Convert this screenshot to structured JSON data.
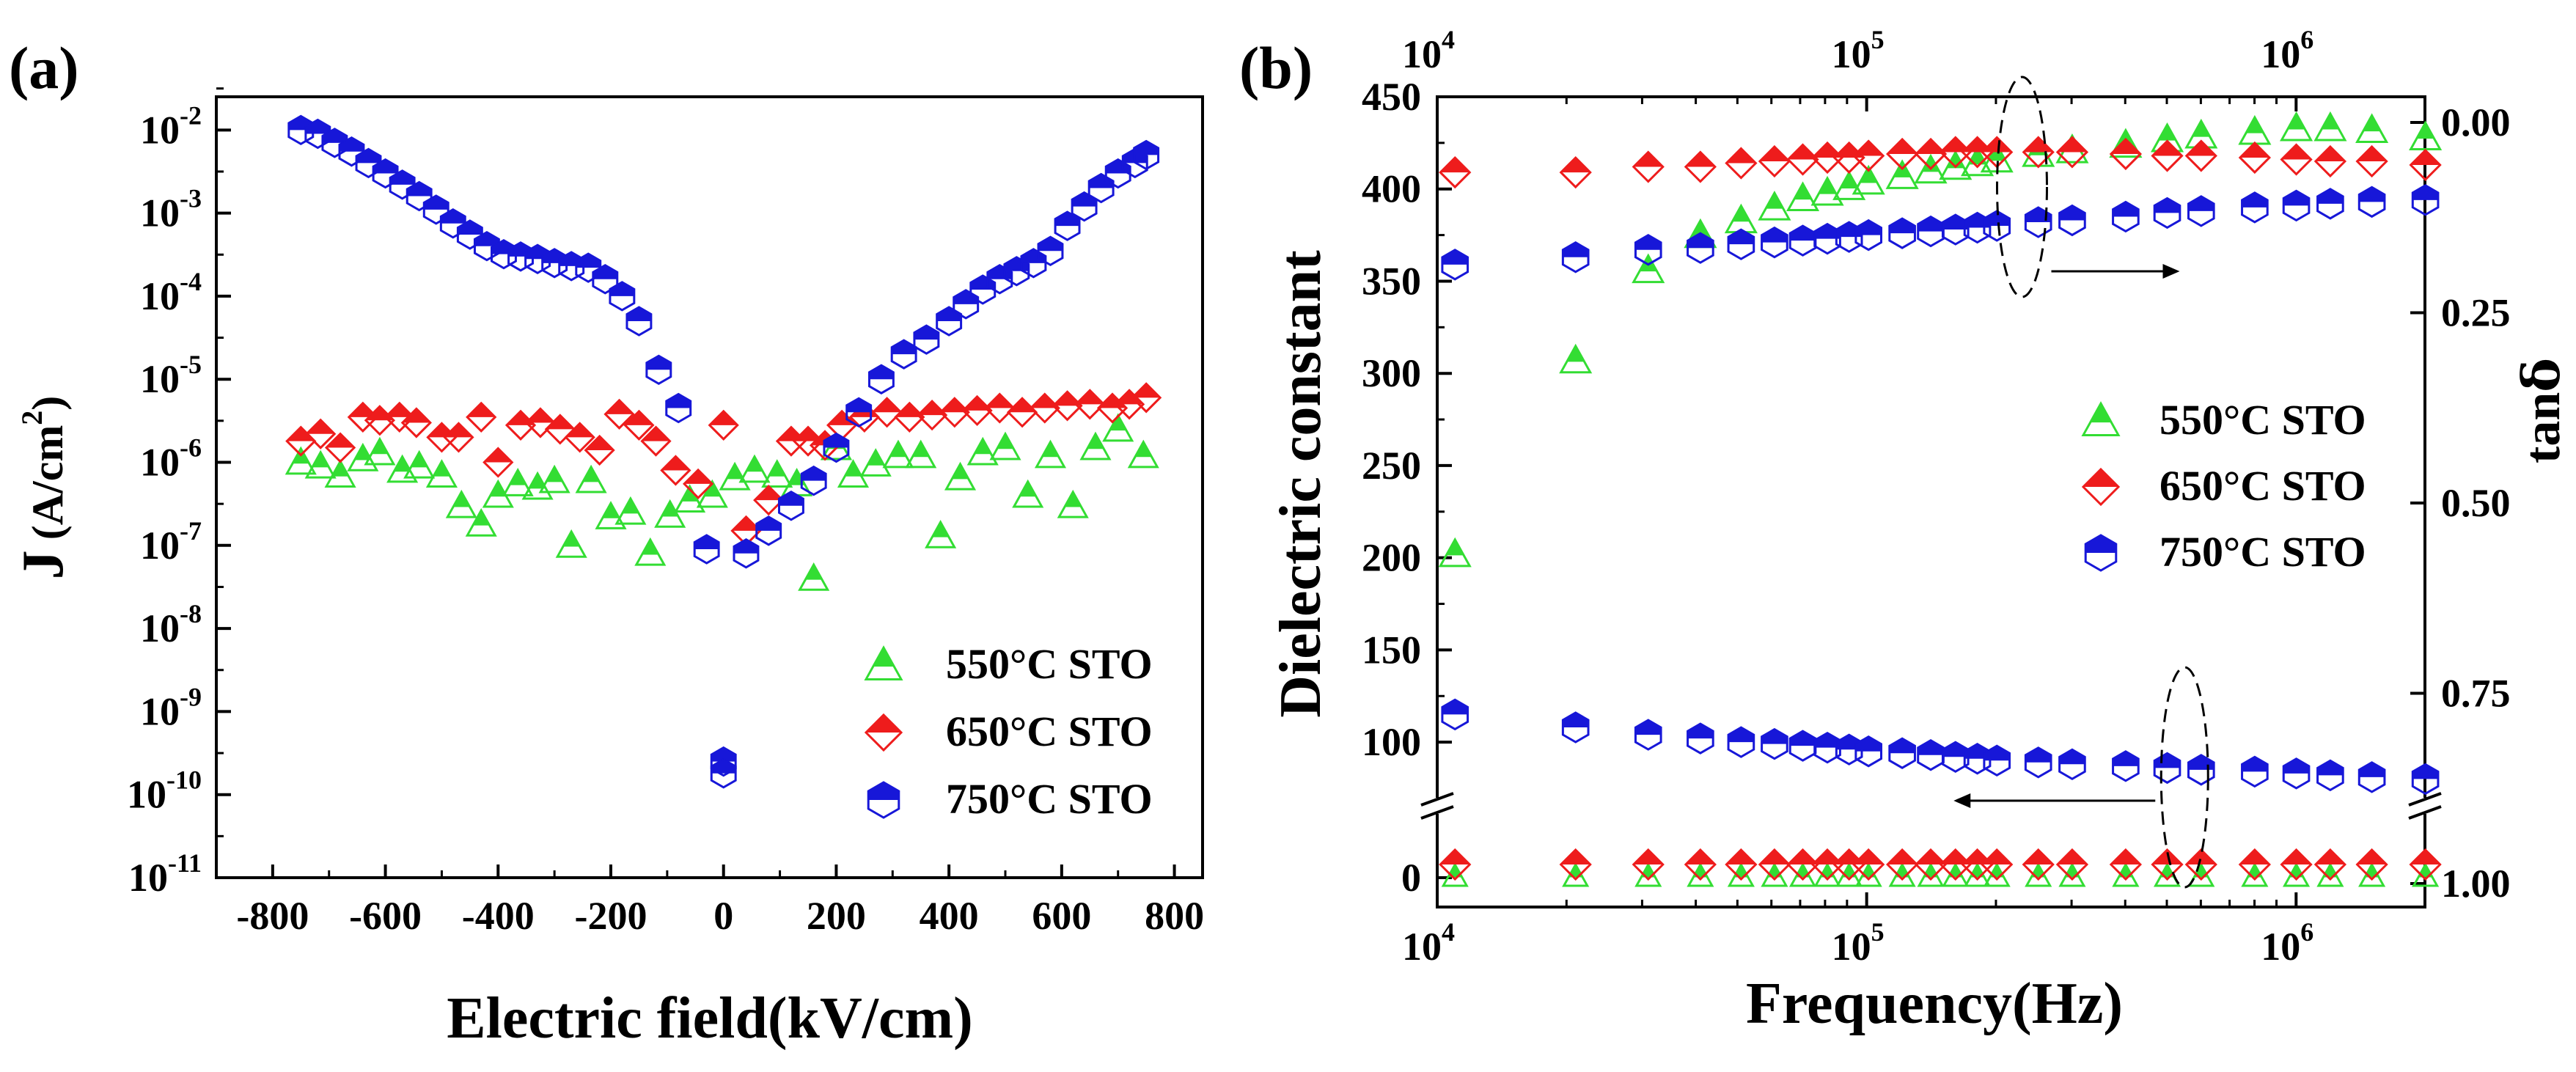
{
  "panels": {
    "a": {
      "label": "(a)"
    },
    "b": {
      "label": "(b)"
    }
  },
  "colors": {
    "s550": "#33dd33",
    "s650": "#ee1c1c",
    "s750": "#1717d8"
  },
  "chart_data": [
    {
      "id": "a",
      "type": "scatter",
      "title": "",
      "xlabel": "Electric field(kV/cm)",
      "ylabel_main": "J",
      "ylabel_unit": "(A/cm",
      "ylabel_sup": "2",
      "ylabel_close": ")",
      "yscale": "log",
      "xlim": [
        -900,
        850
      ],
      "ylim_exp": [
        -11,
        -1.6
      ],
      "x_ticks": [
        -800,
        -600,
        -400,
        -200,
        0,
        200,
        400,
        600,
        800
      ],
      "x_tick_labels": [
        "-800",
        "-600",
        "-400",
        "-200",
        "0",
        "200",
        "400",
        "600",
        "800"
      ],
      "y_tick_exponents": [
        -2,
        -3,
        -4,
        -5,
        -6,
        -7,
        -8,
        -9,
        -10,
        -11
      ],
      "y_tick_base": "10",
      "legend": {
        "position": "bottom-right",
        "entries": [
          "550°C STO",
          "650°C STO",
          "750°C STO"
        ]
      },
      "series": [
        {
          "name": "550°C STO",
          "marker": "triangle",
          "points": [
            [
              -750,
              1e-06
            ],
            [
              -715,
              9e-07
            ],
            [
              -680,
              7e-07
            ],
            [
              -640,
              1.1e-06
            ],
            [
              -610,
              1.3e-06
            ],
            [
              -570,
              8e-07
            ],
            [
              -540,
              9e-07
            ],
            [
              -500,
              7e-07
            ],
            [
              -465,
              3e-07
            ],
            [
              -430,
              1.8e-07
            ],
            [
              -400,
              4e-07
            ],
            [
              -365,
              5.5e-07
            ],
            [
              -330,
              5e-07
            ],
            [
              -300,
              6e-07
            ],
            [
              -270,
              1e-07
            ],
            [
              -235,
              6e-07
            ],
            [
              -200,
              2.2e-07
            ],
            [
              -165,
              2.5e-07
            ],
            [
              -130,
              8e-08
            ],
            [
              -95,
              2.3e-07
            ],
            [
              -60,
              3.5e-07
            ],
            [
              -20,
              4e-07
            ],
            [
              20,
              6.5e-07
            ],
            [
              55,
              8e-07
            ],
            [
              95,
              7e-07
            ],
            [
              130,
              5.5e-07
            ],
            [
              160,
              4e-08
            ],
            [
              200,
              1.5e-06
            ],
            [
              230,
              7e-07
            ],
            [
              270,
              9.5e-07
            ],
            [
              310,
              1.2e-06
            ],
            [
              350,
              1.2e-06
            ],
            [
              385,
              1.3e-07
            ],
            [
              420,
              6.5e-07
            ],
            [
              460,
              1.3e-06
            ],
            [
              500,
              1.5e-06
            ],
            [
              540,
              4e-07
            ],
            [
              580,
              1.2e-06
            ],
            [
              620,
              3e-07
            ],
            [
              660,
              1.5e-06
            ],
            [
              700,
              2.5e-06
            ],
            [
              745,
              1.2e-06
            ]
          ]
        },
        {
          "name": "650°C STO",
          "marker": "diamond",
          "points": [
            [
              -750,
              1.8e-06
            ],
            [
              -715,
              2.2e-06
            ],
            [
              -680,
              1.5e-06
            ],
            [
              -640,
              3.5e-06
            ],
            [
              -610,
              3.2e-06
            ],
            [
              -575,
              3.5e-06
            ],
            [
              -545,
              3e-06
            ],
            [
              -500,
              2e-06
            ],
            [
              -470,
              2e-06
            ],
            [
              -430,
              3.5e-06
            ],
            [
              -400,
              1e-06
            ],
            [
              -360,
              2.8e-06
            ],
            [
              -325,
              3e-06
            ],
            [
              -290,
              2.5e-06
            ],
            [
              -255,
              2e-06
            ],
            [
              -220,
              1.4e-06
            ],
            [
              -185,
              3.8e-06
            ],
            [
              -150,
              2.8e-06
            ],
            [
              -120,
              1.8e-06
            ],
            [
              -85,
              8e-07
            ],
            [
              -45,
              5.5e-07
            ],
            [
              0,
              2.8e-06
            ],
            [
              40,
              1.5e-07
            ],
            [
              80,
              3.5e-07
            ],
            [
              120,
              1.8e-06
            ],
            [
              150,
              1.8e-06
            ],
            [
              180,
              1.6e-06
            ],
            [
              210,
              2.8e-06
            ],
            [
              250,
              3.5e-06
            ],
            [
              290,
              4e-06
            ],
            [
              330,
              3.5e-06
            ],
            [
              370,
              3.7e-06
            ],
            [
              410,
              4e-06
            ],
            [
              450,
              4.2e-06
            ],
            [
              490,
              4.5e-06
            ],
            [
              530,
              4e-06
            ],
            [
              570,
              4.5e-06
            ],
            [
              610,
              4.8e-06
            ],
            [
              650,
              5e-06
            ],
            [
              690,
              4.5e-06
            ],
            [
              720,
              5e-06
            ],
            [
              750,
              6e-06
            ]
          ]
        },
        {
          "name": "750°C STO",
          "marker": "hexagon",
          "points": [
            [
              -750,
              0.01
            ],
            [
              -720,
              0.009
            ],
            [
              -690,
              0.007
            ],
            [
              -660,
              0.0055
            ],
            [
              -630,
              0.004
            ],
            [
              -600,
              0.003
            ],
            [
              -570,
              0.0022
            ],
            [
              -540,
              0.0016
            ],
            [
              -510,
              0.0011
            ],
            [
              -480,
              0.00075
            ],
            [
              -450,
              0.00055
            ],
            [
              -420,
              0.0004
            ],
            [
              -390,
              0.00032
            ],
            [
              -360,
              0.0003
            ],
            [
              -330,
              0.00028
            ],
            [
              -300,
              0.00025
            ],
            [
              -270,
              0.00023
            ],
            [
              -240,
              0.00022
            ],
            [
              -210,
              0.00016
            ],
            [
              -180,
              0.0001
            ],
            [
              -150,
              5e-05
            ],
            [
              -115,
              1.3e-05
            ],
            [
              -80,
              4.5e-06
            ],
            [
              -30,
              9e-08
            ],
            [
              0,
              2.5e-10
            ],
            [
              40,
              8e-08
            ],
            [
              80,
              1.5e-07
            ],
            [
              120,
              3e-07
            ],
            [
              160,
              6e-07
            ],
            [
              200,
              1.5e-06
            ],
            [
              240,
              4e-06
            ],
            [
              280,
              1e-05
            ],
            [
              320,
              2e-05
            ],
            [
              360,
              3e-05
            ],
            [
              400,
              5e-05
            ],
            [
              430,
              8e-05
            ],
            [
              460,
              0.00012
            ],
            [
              490,
              0.00016
            ],
            [
              520,
              0.0002
            ],
            [
              550,
              0.00025
            ],
            [
              580,
              0.00035
            ],
            [
              610,
              0.0007
            ],
            [
              640,
              0.0012
            ],
            [
              670,
              0.002
            ],
            [
              700,
              0.003
            ],
            [
              730,
              0.004
            ],
            [
              750,
              0.005
            ]
          ]
        }
      ]
    },
    {
      "id": "b",
      "type": "scatter",
      "title": "",
      "xlabel": "Frequency(Hz)",
      "ylabel_left": "Dielectric constant",
      "ylabel_right": "tan",
      "ylabel_right_symbol": "δ",
      "xscale": "log",
      "xlim_exp": [
        4,
        6.3
      ],
      "x_tick_exponents": [
        4,
        5,
        6
      ],
      "x_tick_base": "10",
      "top_axis_exponents": [
        4,
        5,
        6
      ],
      "y_left_upper_ticks": [
        "100",
        "150",
        "200",
        "250",
        "300",
        "350",
        "400",
        "450"
      ],
      "y_left_upper_values": [
        100,
        150,
        200,
        250,
        300,
        350,
        400,
        450
      ],
      "y_left_lower_ticks": [
        "0"
      ],
      "y_left_lower_values": [
        0
      ],
      "y_left_upper_range": [
        75,
        450
      ],
      "y_right_ticks": [
        "0.00",
        "0.25",
        "0.50",
        "0.75",
        "1.00"
      ],
      "y_right_values": [
        0.0,
        0.25,
        0.5,
        0.75,
        1.0
      ],
      "legend": {
        "position": "center-right",
        "entries": [
          "550°C STO",
          "650°C STO",
          "750°C STO"
        ]
      },
      "annotations": [
        "dashed ellipse with arrow pointing right (dielectric constant curves → left axis... tanδ right axis)",
        "dashed ellipse with arrow pointing left"
      ],
      "series": [
        {
          "name": "550°C STO",
          "marker": "triangle",
          "quantity": "dielectric constant",
          "freq": [
            11000,
            21000,
            31000,
            41000,
            51000,
            61000,
            71000,
            81000,
            91000,
            101000,
            121000,
            141000,
            161000,
            181000,
            201000,
            251000,
            301000,
            401000,
            501000,
            601000,
            801000,
            1001000,
            1201000,
            1501000,
            2000000
          ],
          "values": [
            202,
            307,
            356,
            375,
            383,
            390,
            395,
            398,
            401,
            404,
            407,
            410,
            412,
            414,
            416,
            419,
            421,
            424,
            427,
            429,
            431,
            433,
            433,
            432,
            428
          ]
        },
        {
          "name": "650°C STO",
          "marker": "diamond",
          "quantity": "dielectric constant (top) / tanδ (bottom)",
          "freq": [
            11000,
            21000,
            31000,
            41000,
            51000,
            61000,
            71000,
            81000,
            91000,
            101000,
            121000,
            141000,
            161000,
            181000,
            201000,
            251000,
            301000,
            401000,
            501000,
            601000,
            801000,
            1001000,
            1201000,
            1501000,
            2000000
          ],
          "values": [
            409,
            409,
            412,
            412,
            414,
            415,
            416,
            417,
            417,
            418,
            419,
            419,
            420,
            420,
            420,
            420,
            420,
            419,
            418,
            418,
            417,
            416,
            415,
            415,
            413
          ],
          "tan_delta": [
            0.94,
            0.94,
            0.94,
            0.94,
            0.94,
            0.94,
            0.94,
            0.94,
            0.94,
            0.94,
            0.94,
            0.94,
            0.94,
            0.94,
            0.94,
            0.94,
            0.94,
            0.94,
            0.94,
            0.94,
            0.94,
            0.94,
            0.94,
            0.94,
            0.94
          ]
        },
        {
          "name": "750°C STO",
          "marker": "hexagon",
          "quantity": "dielectric constant (upper band) / tanδ (lower band)",
          "freq": [
            11000,
            21000,
            31000,
            41000,
            51000,
            61000,
            71000,
            81000,
            91000,
            101000,
            121000,
            141000,
            161000,
            181000,
            201000,
            251000,
            301000,
            401000,
            501000,
            601000,
            801000,
            1001000,
            1201000,
            1501000,
            2000000
          ],
          "values": [
            359,
            363,
            367,
            368,
            370,
            371,
            372,
            373,
            374,
            375,
            376,
            377,
            378,
            379,
            380,
            382,
            383,
            385,
            387,
            388,
            390,
            391,
            392,
            393,
            394
          ],
          "lower_values": [
            115,
            108,
            104,
            102,
            100,
            99,
            98,
            97,
            96,
            95,
            94,
            93,
            92,
            91,
            90,
            89,
            88,
            87,
            86,
            85,
            84,
            83,
            82,
            81,
            80
          ]
        }
      ]
    }
  ]
}
